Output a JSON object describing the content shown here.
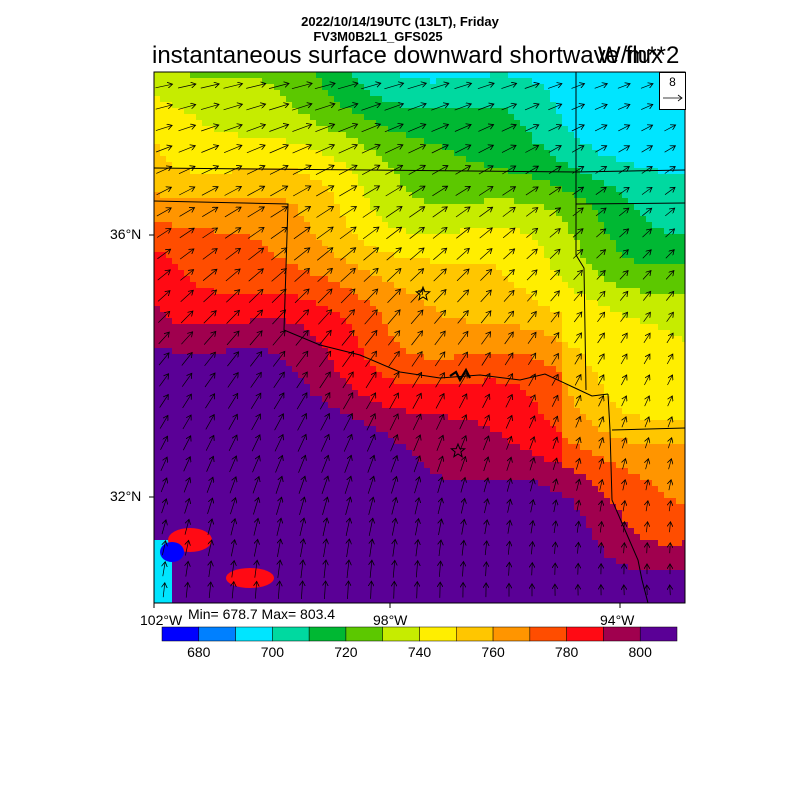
{
  "header": {
    "line1": "2022/10/14/19UTC (13LT), Friday",
    "line2": "FV3M0B2L1_GFS025",
    "title": "instantaneous surface downward shortwave flux",
    "units": "W/m**2"
  },
  "vector_legend": {
    "label": "8"
  },
  "axes": {
    "lat_labels": [
      "36°N",
      "32°N"
    ],
    "lon_labels": [
      "102°W",
      "98°W",
      "94°W"
    ]
  },
  "stats": {
    "text": "Min= 678.7 Max= 803.4",
    "min": 678.7,
    "max": 803.4
  },
  "colorbar": {
    "colors": [
      "#0000ff",
      "#0080ff",
      "#00e5ff",
      "#00d9a0",
      "#00b833",
      "#5cc800",
      "#c6ec00",
      "#ffee00",
      "#ffc600",
      "#ff9500",
      "#ff4d00",
      "#ff0a14",
      "#a0004e",
      "#5a0096"
    ],
    "tick_labels": [
      "680",
      "700",
      "720",
      "740",
      "760",
      "780",
      "800"
    ]
  },
  "markers": [
    {
      "name": "city-star-north"
    },
    {
      "name": "city-star-south"
    }
  ]
}
